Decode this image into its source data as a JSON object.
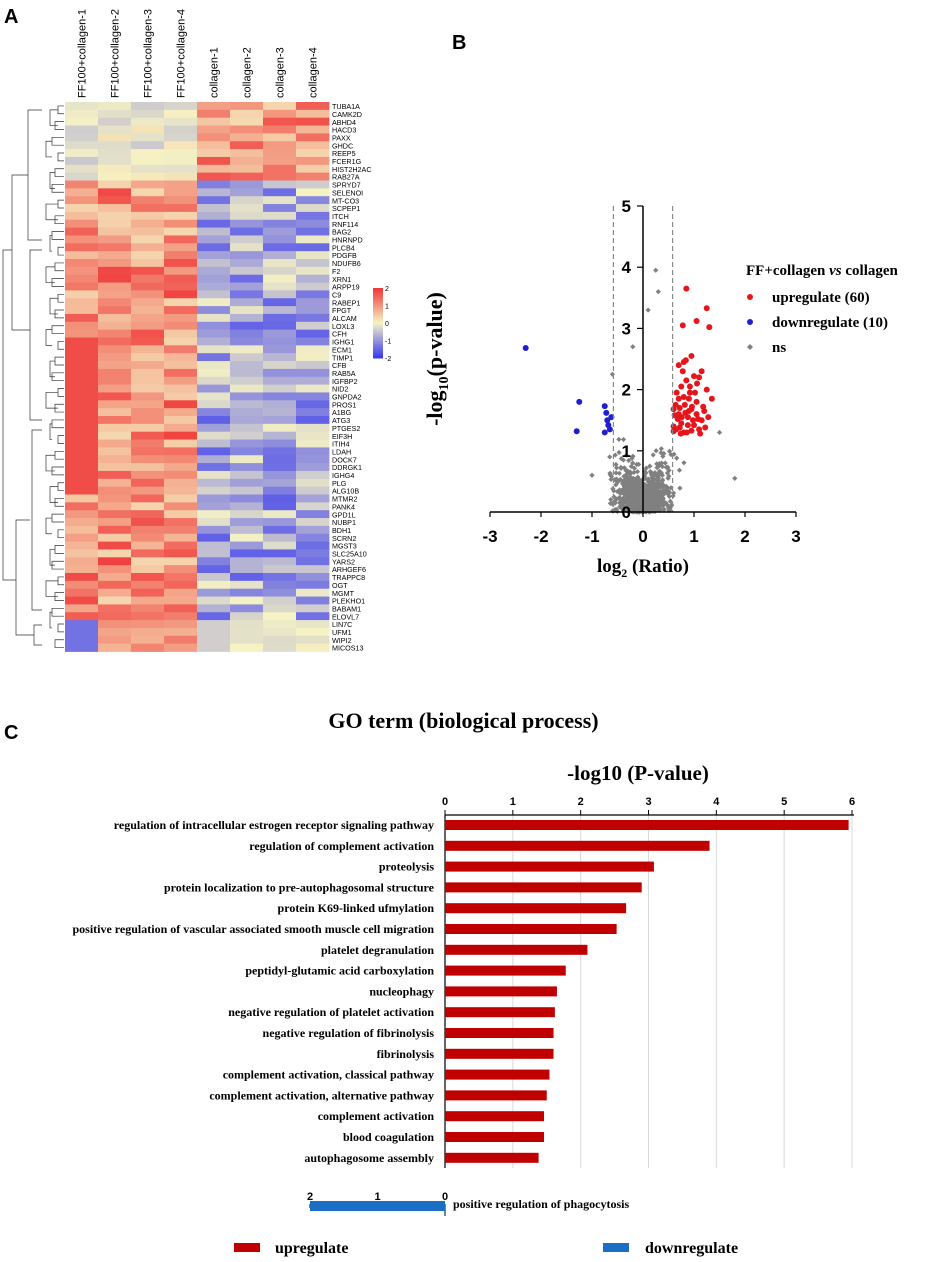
{
  "panels": {
    "a": "A",
    "b": "B",
    "c": "C"
  },
  "chart_data": [
    {
      "type": "heatmap",
      "panel": "A",
      "columns": [
        "FF100+collagen-1",
        "FF100+collagen-2",
        "FF100+collagen-3",
        "FF100+collagen-4",
        "collagen-1",
        "collagen-2",
        "collagen-3",
        "collagen-4"
      ],
      "rows": [
        "TUBA1A",
        "CAMK2D",
        "ABHD4",
        "HACD3",
        "PAXX",
        "GHDC",
        "REEP5",
        "FCER1G",
        "HIST2H2AC",
        "RAB27A",
        "SPRYD7",
        "SELENOI",
        "MT-CO3",
        "SCPEP1",
        "ITCH",
        "RNF114",
        "BAG2",
        "HNRNPD",
        "PLCB4",
        "PDGFB",
        "NDUFB6",
        "F2",
        "XRN1",
        "ARPP19",
        "C9",
        "RABEP1",
        "FPGT",
        "ALCAM",
        "LOXL3",
        "CFH",
        "IGHG1",
        "ECM1",
        "TIMP1",
        "CFB",
        "RAB5A",
        "IGFBP2",
        "NID2",
        "GNPDA2",
        "PROS1",
        "A1BG",
        "ATG3",
        "PTGES2",
        "EIF3H",
        "ITIH4",
        "LDAH",
        "DOCK7",
        "DDRGK1",
        "IGHG4",
        "PLG",
        "ALG10B",
        "MTMR2",
        "PANK4",
        "GPD1L",
        "NUBP1",
        "BDH1",
        "SCRN2",
        "MGST3",
        "SLC25A10",
        "YARS2",
        "ARHGEF6",
        "TRAPPC8",
        "OGT",
        "MGMT",
        "PLEKHO1",
        "BABAM1",
        "ELOVL7",
        "LIN7C",
        "UFM1",
        "WIPI2",
        "MICOS13"
      ],
      "color_scale": {
        "min": -2,
        "max": 2,
        "ticks": [
          "2",
          "1",
          "0",
          "-1",
          "-2"
        ],
        "low": "#3b3bf0",
        "mid": "#f6f3c4",
        "high": "#f03a3a"
      }
    },
    {
      "type": "scatter",
      "panel": "B",
      "xlabel": "log",
      "xlabel_sub": "2",
      "xlabel_rest": " (Ratio)",
      "ylabel": "-log",
      "ylabel_sub": "10",
      "ylabel_rest": "(p-value)",
      "xlim": [
        -3,
        3
      ],
      "ylim": [
        0,
        5
      ],
      "xticks": [
        "-3",
        "-2",
        "-1",
        "0",
        "1",
        "2",
        "3"
      ],
      "yticks": [
        "0",
        "1",
        "2",
        "3",
        "4",
        "5"
      ],
      "thresholds_x": [
        -0.58,
        0.58
      ],
      "legend_title": "FF+collagen",
      "legend_vs": "vs",
      "legend_title_end": "collagen",
      "legend": [
        {
          "label": "upregulate (60)",
          "color": "#e8141b",
          "shape": "circle"
        },
        {
          "label": "downregulate (10)",
          "color": "#1f1fd0",
          "shape": "circle"
        },
        {
          "label": "ns",
          "color": "#808080",
          "shape": "diamond"
        }
      ],
      "down_points": [
        [
          -2.3,
          2.68
        ],
        [
          -1.25,
          1.8
        ],
        [
          -1.3,
          1.32
        ],
        [
          -0.75,
          1.73
        ],
        [
          -0.72,
          1.62
        ],
        [
          -0.7,
          1.5
        ],
        [
          -0.68,
          1.42
        ],
        [
          -0.75,
          1.3
        ],
        [
          -0.65,
          1.35
        ],
        [
          -0.62,
          1.55
        ]
      ],
      "up_points": [
        [
          0.85,
          3.65
        ],
        [
          1.05,
          3.12
        ],
        [
          1.25,
          3.33
        ],
        [
          1.3,
          3.02
        ],
        [
          0.78,
          3.05
        ],
        [
          0.8,
          2.45
        ],
        [
          0.95,
          2.55
        ],
        [
          1.0,
          2.22
        ],
        [
          0.85,
          2.15
        ],
        [
          1.1,
          2.2
        ],
        [
          1.25,
          2.0
        ],
        [
          1.35,
          1.85
        ],
        [
          0.92,
          1.95
        ],
        [
          0.75,
          2.05
        ],
        [
          0.7,
          1.85
        ],
        [
          0.82,
          1.75
        ],
        [
          0.95,
          1.68
        ],
        [
          1.05,
          1.8
        ],
        [
          0.7,
          1.6
        ],
        [
          0.88,
          1.55
        ],
        [
          1.15,
          1.5
        ],
        [
          1.2,
          1.65
        ],
        [
          1.0,
          1.42
        ],
        [
          0.75,
          1.45
        ],
        [
          0.65,
          1.35
        ],
        [
          0.8,
          1.3
        ],
        [
          0.95,
          1.33
        ],
        [
          1.1,
          1.35
        ],
        [
          1.05,
          1.6
        ],
        [
          0.72,
          1.7
        ],
        [
          0.6,
          1.4
        ],
        [
          0.68,
          1.52
        ],
        [
          0.9,
          1.85
        ],
        [
          1.15,
          2.3
        ],
        [
          0.78,
          2.3
        ],
        [
          0.6,
          1.32
        ],
        [
          0.83,
          1.62
        ],
        [
          0.98,
          1.5
        ],
        [
          1.22,
          1.38
        ],
        [
          0.66,
          1.95
        ],
        [
          0.74,
          1.28
        ],
        [
          0.88,
          1.42
        ],
        [
          1.08,
          1.52
        ],
        [
          1.18,
          1.72
        ],
        [
          0.62,
          1.58
        ],
        [
          0.7,
          2.4
        ],
        [
          0.92,
          2.05
        ],
        [
          1.02,
          1.95
        ],
        [
          0.8,
          1.88
        ],
        [
          0.64,
          1.75
        ],
        [
          0.86,
          1.3
        ],
        [
          1.12,
          1.28
        ],
        [
          0.76,
          1.55
        ],
        [
          0.96,
          1.72
        ],
        [
          1.28,
          1.55
        ],
        [
          0.6,
          1.68
        ],
        [
          0.84,
          2.48
        ],
        [
          1.06,
          2.1
        ],
        [
          0.72,
          1.38
        ],
        [
          0.9,
          1.65
        ]
      ],
      "ns_description": "dense cloud of non-significant proteins centered near (0, 0)"
    },
    {
      "type": "bar",
      "panel": "C",
      "title": "GO term (biological process)",
      "axis_title": "-log10 (P-value)",
      "xlim": [
        0,
        6
      ],
      "xticks": [
        "0",
        "1",
        "2",
        "3",
        "4",
        "5",
        "6"
      ],
      "up_color": "#c00000",
      "down_color": "#1a6ec3",
      "up_categories": [
        "regulation of intracellular estrogen receptor signaling pathway",
        "regulation of complement activation",
        "proteolysis",
        "protein localization to pre-autophagosomal structure",
        "protein K69-linked ufmylation",
        "positive regulation of vascular associated smooth muscle cell migration",
        "platelet degranulation",
        "peptidyl-glutamic acid carboxylation",
        "nucleophagy",
        "negative regulation of platelet activation",
        "negative regulation of fibrinolysis",
        "fibrinolysis",
        "complement activation, classical pathway",
        "complement activation, alternative pathway",
        "complement activation",
        "blood coagulation",
        "autophagosome assembly"
      ],
      "up_values": [
        5.95,
        3.9,
        3.08,
        2.9,
        2.67,
        2.53,
        2.1,
        1.78,
        1.65,
        1.62,
        1.6,
        1.6,
        1.54,
        1.5,
        1.46,
        1.46,
        1.38
      ],
      "down_axis": {
        "xlim": [
          0,
          2
        ],
        "xticks": [
          "2",
          "1",
          "0"
        ]
      },
      "down_categories": [
        "positive regulation of phagocytosis"
      ],
      "down_values": [
        2.0
      ],
      "legend": [
        {
          "label": "upregulate",
          "color": "#c00000"
        },
        {
          "label": "downregulate",
          "color": "#1a6ec3"
        }
      ]
    }
  ]
}
